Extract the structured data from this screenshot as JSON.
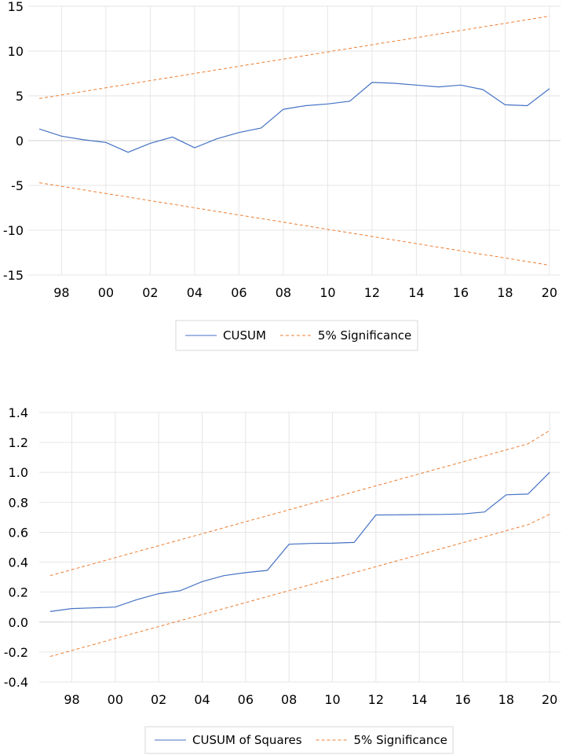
{
  "chart_data": [
    {
      "type": "line",
      "title": "",
      "xlabel": "",
      "ylabel": "",
      "x": [
        1997,
        1998,
        1999,
        2000,
        2001,
        2002,
        2003,
        2004,
        2005,
        2006,
        2007,
        2008,
        2009,
        2010,
        2011,
        2012,
        2013,
        2014,
        2015,
        2016,
        2017,
        2018,
        2019,
        2020
      ],
      "x_ticks": [
        {
          "value": 1998,
          "label": "98"
        },
        {
          "value": 2000,
          "label": "00"
        },
        {
          "value": 2002,
          "label": "02"
        },
        {
          "value": 2004,
          "label": "04"
        },
        {
          "value": 2006,
          "label": "06"
        },
        {
          "value": 2008,
          "label": "08"
        },
        {
          "value": 2010,
          "label": "10"
        },
        {
          "value": 2012,
          "label": "12"
        },
        {
          "value": 2014,
          "label": "14"
        },
        {
          "value": 2016,
          "label": "16"
        },
        {
          "value": 2018,
          "label": "18"
        },
        {
          "value": 2020,
          "label": "20"
        }
      ],
      "y_ticks": [
        {
          "value": 15,
          "label": "15"
        },
        {
          "value": 10,
          "label": "10"
        },
        {
          "value": 5,
          "label": "5"
        },
        {
          "value": 0,
          "label": "0"
        },
        {
          "value": -5,
          "label": "-5"
        },
        {
          "value": -10,
          "label": "-10"
        },
        {
          "value": -15,
          "label": "-15"
        }
      ],
      "xlim": [
        1996.5,
        2020.5
      ],
      "ylim": [
        -15,
        15
      ],
      "grid": true,
      "series": [
        {
          "name": "CUSUM",
          "color": "#4472c4",
          "style": "solid",
          "values": [
            1.3,
            0.5,
            0.1,
            -0.2,
            -1.3,
            -0.3,
            0.4,
            -0.8,
            0.2,
            0.9,
            1.4,
            3.5,
            3.9,
            4.1,
            4.4,
            6.5,
            6.4,
            6.2,
            6.0,
            6.2,
            5.7,
            4.0,
            3.9,
            5.8
          ]
        },
        {
          "name": "5% Significance",
          "color": "#ed7d31",
          "style": "dashed",
          "legend": true,
          "values": [
            4.7,
            5.1,
            5.5,
            5.9,
            6.3,
            6.7,
            7.1,
            7.5,
            7.9,
            8.3,
            8.7,
            9.1,
            9.5,
            9.9,
            10.3,
            10.7,
            11.1,
            11.5,
            11.9,
            12.3,
            12.7,
            13.1,
            13.5,
            13.9
          ]
        },
        {
          "name": "5% Significance",
          "color": "#ed7d31",
          "style": "dashed",
          "legend": false,
          "values": [
            -4.7,
            -5.1,
            -5.5,
            -5.9,
            -6.3,
            -6.7,
            -7.1,
            -7.5,
            -7.9,
            -8.3,
            -8.7,
            -9.1,
            -9.5,
            -9.9,
            -10.3,
            -10.7,
            -11.1,
            -11.5,
            -11.9,
            -12.3,
            -12.7,
            -13.1,
            -13.5,
            -13.9
          ]
        }
      ],
      "legend": {
        "placement": "bottom-center",
        "entries": [
          "CUSUM",
          "5% Significance"
        ]
      }
    },
    {
      "type": "line",
      "title": "",
      "xlabel": "",
      "ylabel": "",
      "x": [
        1997,
        1998,
        1999,
        2000,
        2001,
        2002,
        2003,
        2004,
        2005,
        2006,
        2007,
        2008,
        2009,
        2010,
        2011,
        2012,
        2013,
        2014,
        2015,
        2016,
        2017,
        2018,
        2019,
        2020
      ],
      "x_ticks": [
        {
          "value": 1998,
          "label": "98"
        },
        {
          "value": 2000,
          "label": "00"
        },
        {
          "value": 2002,
          "label": "02"
        },
        {
          "value": 2004,
          "label": "04"
        },
        {
          "value": 2006,
          "label": "06"
        },
        {
          "value": 2008,
          "label": "08"
        },
        {
          "value": 2010,
          "label": "10"
        },
        {
          "value": 2012,
          "label": "12"
        },
        {
          "value": 2014,
          "label": "14"
        },
        {
          "value": 2016,
          "label": "16"
        },
        {
          "value": 2018,
          "label": "18"
        },
        {
          "value": 2020,
          "label": "20"
        }
      ],
      "y_ticks": [
        {
          "value": 1.4,
          "label": "1.4"
        },
        {
          "value": 1.2,
          "label": "1.2"
        },
        {
          "value": 1.0,
          "label": "1.0"
        },
        {
          "value": 0.8,
          "label": "0.8"
        },
        {
          "value": 0.6,
          "label": "0.6"
        },
        {
          "value": 0.4,
          "label": "0.4"
        },
        {
          "value": 0.2,
          "label": "0.2"
        },
        {
          "value": 0.0,
          "label": "0.0"
        },
        {
          "value": -0.2,
          "label": "-0.2"
        },
        {
          "value": -0.4,
          "label": "-0.4"
        }
      ],
      "xlim": [
        1996.5,
        2020.5
      ],
      "ylim": [
        -0.4,
        1.4
      ],
      "grid": true,
      "series": [
        {
          "name": "CUSUM of Squares",
          "color": "#4472c4",
          "style": "solid",
          "values": [
            0.07,
            0.09,
            0.095,
            0.1,
            0.15,
            0.19,
            0.21,
            0.27,
            0.31,
            0.33,
            0.345,
            0.52,
            0.525,
            0.527,
            0.532,
            0.715,
            0.716,
            0.718,
            0.719,
            0.722,
            0.735,
            0.85,
            0.855,
            1.0
          ]
        },
        {
          "name": "5% Significance",
          "color": "#ed7d31",
          "style": "dashed",
          "legend": true,
          "values": [
            0.31,
            0.35,
            0.39,
            0.43,
            0.47,
            0.51,
            0.55,
            0.59,
            0.63,
            0.67,
            0.71,
            0.75,
            0.79,
            0.83,
            0.87,
            0.91,
            0.95,
            0.99,
            1.03,
            1.07,
            1.11,
            1.15,
            1.19,
            1.28
          ]
        },
        {
          "name": "5% Significance",
          "color": "#ed7d31",
          "style": "dashed",
          "legend": false,
          "values": [
            -0.23,
            -0.19,
            -0.15,
            -0.11,
            -0.07,
            -0.03,
            0.01,
            0.05,
            0.09,
            0.13,
            0.17,
            0.21,
            0.25,
            0.29,
            0.33,
            0.37,
            0.41,
            0.45,
            0.49,
            0.53,
            0.57,
            0.61,
            0.65,
            0.72
          ]
        }
      ],
      "legend": {
        "placement": "bottom-center",
        "entries": [
          "CUSUM of Squares",
          "5% Significance"
        ]
      }
    }
  ]
}
